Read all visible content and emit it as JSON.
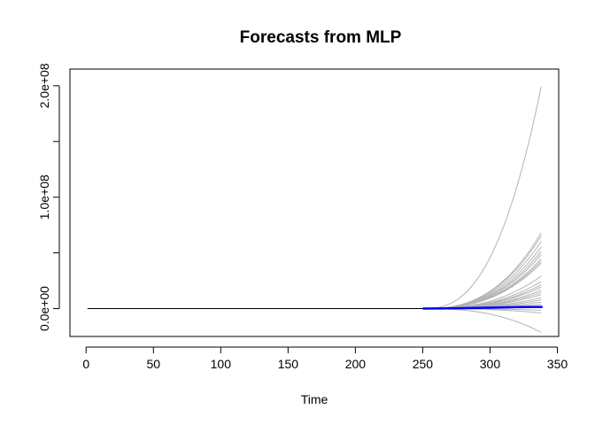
{
  "chart_data": {
    "type": "line",
    "title": "Forecasts from MLP",
    "xlabel": "Time",
    "ylabel": "",
    "xlim": [
      0,
      350
    ],
    "ylim": [
      -25000000,
      215000000
    ],
    "x_ticks": [
      0,
      50,
      100,
      150,
      200,
      250,
      300,
      350
    ],
    "x_tick_labels": [
      "0",
      "50",
      "100",
      "150",
      "200",
      "250",
      "300",
      "350"
    ],
    "y_ticks": [
      0,
      100000000,
      200000000
    ],
    "y_tick_labels": [
      "0.0e+00",
      "1.0e+08",
      "2.0e+08"
    ],
    "grid": false,
    "legend": "none",
    "colors": {
      "history": "#000000",
      "paths": "#b3b3b3",
      "mean": "#0000ff"
    },
    "history": {
      "x": [
        1,
        250
      ],
      "y": [
        0,
        0
      ]
    },
    "forecast_start": 250,
    "forecast_end": 339,
    "simulated_path_endpoints": [
      205000000,
      70000000,
      67000000,
      62000000,
      57000000,
      53000000,
      50000000,
      46000000,
      44000000,
      42000000,
      30000000,
      25000000,
      22000000,
      20000000,
      17000000,
      15000000,
      13000000,
      10000000,
      8000000,
      6000000,
      4000000,
      2000000,
      -1500000,
      -4000000,
      -22000000
    ],
    "mean_forecast": {
      "x": [
        250,
        280,
        300,
        320,
        339
      ],
      "y": [
        0,
        400000,
        800000,
        1300000,
        1500000
      ]
    }
  }
}
